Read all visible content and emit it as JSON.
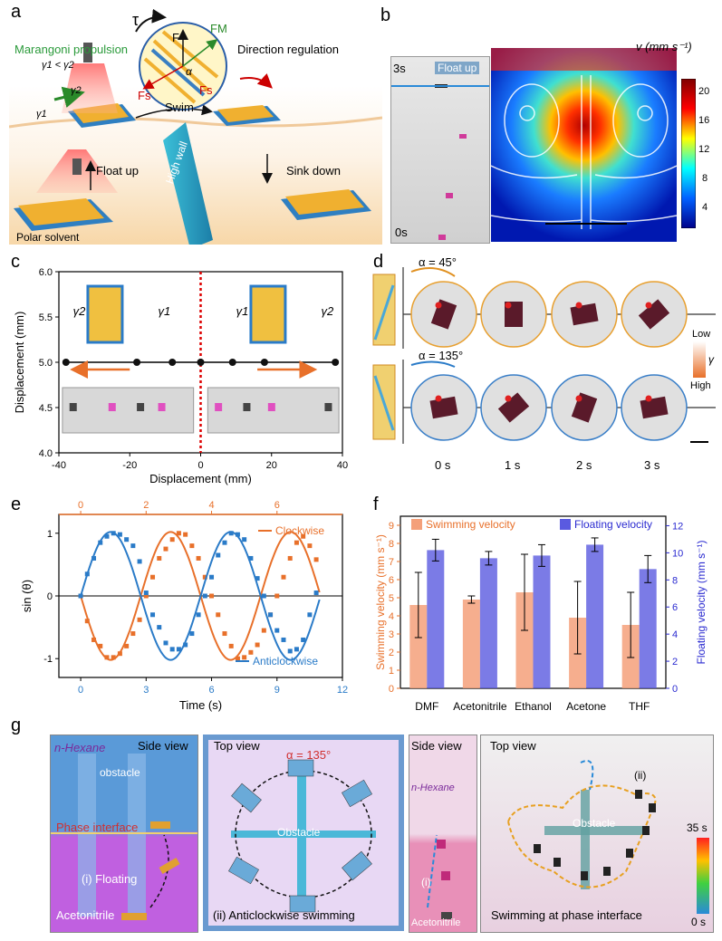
{
  "panels": {
    "a": "a",
    "b": "b",
    "c": "c",
    "d": "d",
    "e": "e",
    "f": "f",
    "g": "g"
  },
  "a": {
    "marangoni": "Marangoni propulsion",
    "gamma_rel": "γ1 < γ2",
    "gamma1": "γ1",
    "gamma2": "γ2",
    "tau": "τ",
    "F": "F",
    "FM": "FM",
    "Fs": "Fs",
    "alpha": "α",
    "direction": "Direction regulation",
    "swim": "Swim",
    "float_up": "Float up",
    "sink_down": "Sink down",
    "high_wall": "High wall",
    "polar_solvent": "Polar solvent"
  },
  "b": {
    "t_top": "3s",
    "t_bottom": "0s",
    "float_up": "Float up",
    "cbar_title": "v (mm s⁻¹)",
    "cbar_ticks": [
      "20",
      "16",
      "12",
      "8",
      "4"
    ]
  },
  "chart_data": [
    {
      "type": "scatter",
      "panel": "c",
      "xlabel": "Displacement (mm)",
      "ylabel": "Displacement (mm)",
      "xlim": [
        -40,
        40
      ],
      "ylim": [
        4.0,
        6.0
      ],
      "xticks": [
        "-40",
        "-20",
        "0",
        "20",
        "40"
      ],
      "yticks": [
        "4.0",
        "4.5",
        "5.0",
        "5.5",
        "6.0"
      ],
      "points": [
        [
          -38,
          5.0
        ],
        [
          -18,
          5.0
        ],
        [
          -8,
          5.0
        ],
        [
          0,
          5.0
        ],
        [
          9,
          5.0
        ],
        [
          18,
          5.0
        ],
        [
          38,
          5.0
        ]
      ],
      "labels": {
        "left_g2": "γ2",
        "left_g1": "γ1",
        "right_g1": "γ1",
        "right_g2": "γ2"
      }
    },
    {
      "type": "line",
      "panel": "e",
      "xlabel": "Time (s)",
      "ylabel": "sin (θ)",
      "xlim": [
        -1,
        12
      ],
      "ylim": [
        -1.3,
        1.3
      ],
      "xticks": [
        "0",
        "3",
        "6",
        "9",
        "12"
      ],
      "top_xticks": [
        "0",
        "2",
        "4",
        "6"
      ],
      "yticks": [
        "-1",
        "0",
        "1"
      ],
      "series": [
        {
          "name": "Clockwise",
          "color": "#e8702a",
          "points": [
            [
              0,
              0
            ],
            [
              0.3,
              -0.4
            ],
            [
              0.6,
              -0.7
            ],
            [
              0.9,
              -0.8
            ],
            [
              1.2,
              -0.98
            ],
            [
              1.5,
              -0.98
            ],
            [
              1.8,
              -0.92
            ],
            [
              2.1,
              -0.8
            ],
            [
              2.4,
              -0.6
            ],
            [
              2.7,
              -0.38
            ],
            [
              3,
              0
            ],
            [
              3.3,
              0.3
            ],
            [
              3.6,
              0.6
            ],
            [
              3.9,
              0.75
            ],
            [
              4.2,
              0.9
            ],
            [
              4.5,
              1.0
            ],
            [
              4.8,
              0.98
            ],
            [
              5.1,
              0.8
            ],
            [
              5.4,
              0.6
            ],
            [
              5.7,
              0.3
            ],
            [
              6,
              0
            ],
            [
              6.3,
              -0.3
            ],
            [
              6.6,
              -0.6
            ],
            [
              6.9,
              -0.8
            ],
            [
              7.2,
              -1.0
            ],
            [
              7.5,
              -0.98
            ],
            [
              7.8,
              -0.9
            ],
            [
              8.1,
              -0.78
            ],
            [
              8.4,
              -0.55
            ],
            [
              8.7,
              -0.3
            ],
            [
              9,
              0
            ],
            [
              9.3,
              0.3
            ],
            [
              9.6,
              0.6
            ],
            [
              9.9,
              0.85
            ],
            [
              10.2,
              0.95
            ],
            [
              10.5,
              0.8
            ],
            [
              10.8,
              0.58
            ]
          ]
        },
        {
          "name": "Anticlockwise",
          "color": "#2a7bc8",
          "points": [
            [
              0,
              0
            ],
            [
              0.3,
              0.35
            ],
            [
              0.6,
              0.6
            ],
            [
              0.9,
              0.85
            ],
            [
              1.2,
              0.95
            ],
            [
              1.5,
              1.0
            ],
            [
              1.8,
              0.98
            ],
            [
              2.1,
              0.9
            ],
            [
              2.4,
              0.8
            ],
            [
              2.7,
              0.55
            ],
            [
              3,
              0.05
            ],
            [
              3.3,
              -0.3
            ],
            [
              3.6,
              -0.5
            ],
            [
              3.9,
              -0.75
            ],
            [
              4.2,
              -0.85
            ],
            [
              4.5,
              -0.85
            ],
            [
              4.8,
              -0.78
            ],
            [
              5.1,
              -0.6
            ],
            [
              5.4,
              -0.3
            ],
            [
              5.7,
              0
            ],
            [
              6,
              0.3
            ],
            [
              6.3,
              0.65
            ],
            [
              6.6,
              0.85
            ],
            [
              6.9,
              1.0
            ],
            [
              7.2,
              0.98
            ],
            [
              7.5,
              0.9
            ],
            [
              7.8,
              0.6
            ],
            [
              8.1,
              0.28
            ],
            [
              8.4,
              0
            ],
            [
              8.7,
              -0.3
            ],
            [
              9,
              -0.55
            ],
            [
              9.3,
              -0.7
            ],
            [
              9.6,
              -0.88
            ],
            [
              9.9,
              -0.85
            ],
            [
              10.2,
              -0.7
            ],
            [
              10.5,
              -0.3
            ],
            [
              10.8,
              0.05
            ]
          ]
        }
      ]
    },
    {
      "type": "bar",
      "panel": "f",
      "categories": [
        "DMF",
        "Acetonitrile",
        "Ethanol",
        "Acetone",
        "THF"
      ],
      "ylabel": "Swimming velocity (mm s⁻¹)",
      "y2label": "Floating velocity (mm s⁻¹)",
      "ylim": [
        0,
        9.5
      ],
      "y2lim": [
        0,
        12.7
      ],
      "yticks": [
        "0",
        "1",
        "2",
        "3",
        "4",
        "5",
        "6",
        "7",
        "8",
        "9"
      ],
      "y2ticks": [
        "0",
        "2",
        "4",
        "6",
        "8",
        "10",
        "12"
      ],
      "series": [
        {
          "name": "Swimming velocity",
          "color": "#f4a07a",
          "axis": "left",
          "values": [
            4.6,
            4.9,
            5.3,
            3.9,
            3.5
          ],
          "errors": [
            1.8,
            0.2,
            2.1,
            2.0,
            1.8
          ]
        },
        {
          "name": "Floating velocity",
          "color": "#5a5ae0",
          "axis": "right",
          "values": [
            10.2,
            9.6,
            9.8,
            10.6,
            8.8
          ],
          "errors": [
            0.8,
            0.5,
            0.8,
            0.5,
            1.0
          ]
        }
      ]
    }
  ],
  "d": {
    "alpha45": "α = 45°",
    "alpha135": "α = 135°",
    "low": "Low",
    "high": "High",
    "gamma": "γ",
    "times": [
      "0 s",
      "1 s",
      "2 s",
      "3 s"
    ]
  },
  "g": {
    "side_view": "Side view",
    "top_view": "Top view",
    "hexane": "n-Hexane",
    "obstacle": "obstacle",
    "obstacle2": "Obstacle",
    "phase_interface": "Phase interface",
    "floating": "(i) Floating",
    "acetonitrile": "Acetonitrile",
    "alpha135": "α = 135°",
    "anticlockwise": "(ii) Anticlockwise swimming",
    "i": "(i)",
    "ii": "(ii)",
    "swim_interface": "Swimming at phase interface",
    "t35": "35 s",
    "t0": "0 s"
  }
}
